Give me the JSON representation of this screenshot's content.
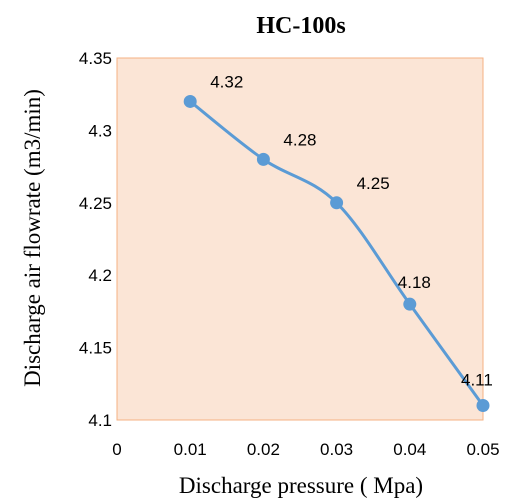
{
  "chart_data": {
    "type": "line",
    "title": "HC-100s",
    "xlabel": "Discharge pressure ( Mpa)",
    "ylabel": "Discharge air flowrate (m3/min)",
    "x_ticks": [
      "0",
      "0.01",
      "0.02",
      "0.03",
      "0.04",
      "0.05"
    ],
    "y_ticks": [
      "4.1",
      "4.15",
      "4.2",
      "4.25",
      "4.3",
      "4.35"
    ],
    "xlim": [
      0,
      0.05
    ],
    "ylim": [
      4.1,
      4.35
    ],
    "smooth": true,
    "grid": false,
    "series": [
      {
        "x": [
          0.01,
          0.02,
          0.03,
          0.04,
          0.05
        ],
        "values": [
          4.32,
          4.28,
          4.25,
          4.18,
          4.11
        ],
        "labels": [
          "4.32",
          "4.28",
          "4.25",
          "4.18",
          "4.11"
        ],
        "color": "#5b9bd5"
      }
    ],
    "plot_background": "#fbe5d6",
    "plot_border": "#f4b183"
  }
}
